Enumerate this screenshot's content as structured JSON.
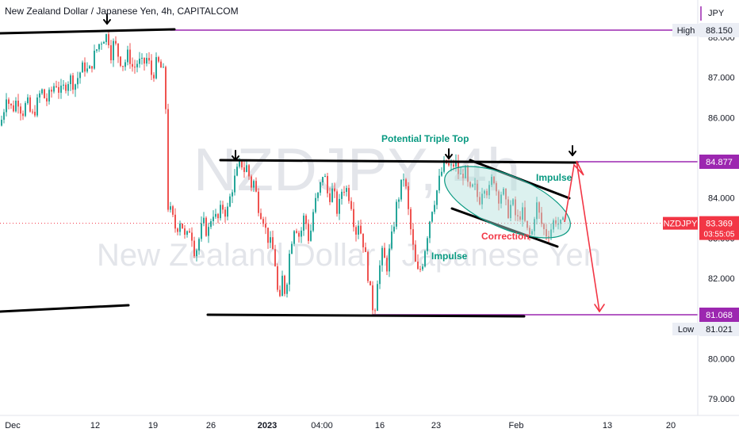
{
  "header": {
    "title": "New Zealand Dollar / Japanese Yen, 4h, CAPITALCOM"
  },
  "watermark": {
    "symbol_text": "NZDJPY, 4h",
    "description": "New Zealand Dollar / Japanese Yen"
  },
  "colors": {
    "up_candle": "#26a69a",
    "down_candle": "#ef5350",
    "level_line": "#9c27b0",
    "trend_line": "#000000",
    "annotation_green": "#089981",
    "annotation_red": "#f23645",
    "ellipse_fill": "#b2dfdb",
    "current_price": "#f23645"
  },
  "chart_data": {
    "type": "candlestick",
    "symbol": "NZDJPY",
    "timeframe": "4h",
    "currency": "JPY",
    "ylim": [
      78.6,
      88.5
    ],
    "y_ticks": [
      "79.000",
      "80.000",
      "81.000",
      "82.000",
      "83.000",
      "84.000",
      "85.000",
      "86.000",
      "87.000",
      "88.000"
    ],
    "x_ticks": [
      "Dec",
      "12",
      "19",
      "26",
      "2023",
      "04:00",
      "16",
      "23",
      "Feb",
      "13",
      "20"
    ],
    "close_path": [
      [
        0,
        85.8
      ],
      [
        4,
        86.1
      ],
      [
        8,
        86.6
      ],
      [
        12,
        86.3
      ],
      [
        16,
        86.2
      ],
      [
        22,
        86.5
      ],
      [
        28,
        86.1
      ],
      [
        34,
        86.4
      ],
      [
        40,
        86.0
      ],
      [
        46,
        86.3
      ],
      [
        52,
        86.7
      ],
      [
        58,
        86.4
      ],
      [
        64,
        86.6
      ],
      [
        70,
        86.9
      ],
      [
        76,
        86.6
      ],
      [
        82,
        86.8
      ],
      [
        88,
        87.0
      ],
      [
        94,
        86.8
      ],
      [
        100,
        87.1
      ],
      [
        106,
        87.3
      ],
      [
        112,
        87.1
      ],
      [
        118,
        87.5
      ],
      [
        124,
        87.8
      ],
      [
        130,
        88.0
      ],
      [
        136,
        88.05
      ],
      [
        140,
        87.6
      ],
      [
        144,
        87.9
      ],
      [
        150,
        87.5
      ],
      [
        156,
        87.3
      ],
      [
        162,
        87.6
      ],
      [
        168,
        87.2
      ],
      [
        174,
        87.4
      ],
      [
        180,
        87.3
      ],
      [
        186,
        87.5
      ],
      [
        192,
        87.0
      ],
      [
        198,
        87.4
      ],
      [
        204,
        87.2
      ],
      [
        208,
        87.0
      ],
      [
        210,
        85.5
      ],
      [
        212,
        83.8
      ],
      [
        216,
        83.6
      ],
      [
        222,
        83.2
      ],
      [
        228,
        83.5
      ],
      [
        234,
        82.9
      ],
      [
        240,
        83.3
      ],
      [
        246,
        82.6
      ],
      [
        250,
        82.9
      ],
      [
        256,
        83.4
      ],
      [
        262,
        83.1
      ],
      [
        268,
        83.7
      ],
      [
        274,
        83.4
      ],
      [
        280,
        83.8
      ],
      [
        286,
        83.6
      ],
      [
        292,
        84.2
      ],
      [
        298,
        84.6
      ],
      [
        304,
        84.9
      ],
      [
        308,
        84.7
      ],
      [
        312,
        84.8
      ],
      [
        316,
        84.3
      ],
      [
        320,
        84.4
      ],
      [
        326,
        83.8
      ],
      [
        332,
        83.5
      ],
      [
        336,
        83.1
      ],
      [
        340,
        82.9
      ],
      [
        346,
        82.6
      ],
      [
        352,
        81.2
      ],
      [
        356,
        82.0
      ],
      [
        360,
        81.6
      ],
      [
        366,
        82.8
      ],
      [
        372,
        83.4
      ],
      [
        378,
        83.0
      ],
      [
        384,
        83.6
      ],
      [
        390,
        82.9
      ],
      [
        396,
        83.8
      ],
      [
        402,
        84.1
      ],
      [
        408,
        84.7
      ],
      [
        414,
        84.0
      ],
      [
        420,
        84.2
      ],
      [
        426,
        83.6
      ],
      [
        432,
        84.3
      ],
      [
        438,
        84.2
      ],
      [
        444,
        83.8
      ],
      [
        448,
        83.1
      ],
      [
        452,
        83.4
      ],
      [
        458,
        82.9
      ],
      [
        462,
        82.4
      ],
      [
        468,
        81.5
      ],
      [
        472,
        81.1
      ],
      [
        476,
        82.0
      ],
      [
        482,
        82.6
      ],
      [
        488,
        82.3
      ],
      [
        494,
        83.0
      ],
      [
        500,
        83.8
      ],
      [
        506,
        84.3
      ],
      [
        510,
        84.6
      ],
      [
        514,
        83.8
      ],
      [
        518,
        83.2
      ],
      [
        522,
        82.6
      ],
      [
        526,
        82.1
      ],
      [
        532,
        82.3
      ],
      [
        538,
        83.0
      ],
      [
        544,
        83.7
      ],
      [
        550,
        84.1
      ],
      [
        556,
        84.6
      ],
      [
        562,
        84.9
      ],
      [
        568,
        84.7
      ],
      [
        574,
        84.9
      ],
      [
        580,
        84.5
      ],
      [
        586,
        84.7
      ],
      [
        592,
        84.1
      ],
      [
        598,
        84.3
      ],
      [
        604,
        83.9
      ],
      [
        610,
        84.4
      ],
      [
        616,
        84.1
      ],
      [
        622,
        84.6
      ],
      [
        628,
        84.0
      ],
      [
        634,
        84.2
      ],
      [
        640,
        83.6
      ],
      [
        646,
        83.9
      ],
      [
        652,
        83.4
      ],
      [
        658,
        83.7
      ],
      [
        664,
        83.2
      ],
      [
        670,
        83.0
      ],
      [
        676,
        83.9
      ],
      [
        682,
        83.4
      ],
      [
        688,
        83.1
      ],
      [
        694,
        83.2
      ],
      [
        700,
        83.5
      ],
      [
        706,
        83.3
      ],
      [
        712,
        83.37
      ]
    ],
    "levels": [
      {
        "label": "High",
        "value": "88.150"
      },
      {
        "label": "",
        "value": "84.877"
      },
      {
        "label": "",
        "value": "81.068"
      },
      {
        "label": "Low",
        "value": "81.021"
      }
    ],
    "current_price": {
      "symbol": "NZDJPY",
      "value": "83.369",
      "countdown": "03:55:05"
    },
    "annotations": [
      "Potential Triple Top",
      "Impulse",
      "Correction",
      "Impulse"
    ]
  }
}
